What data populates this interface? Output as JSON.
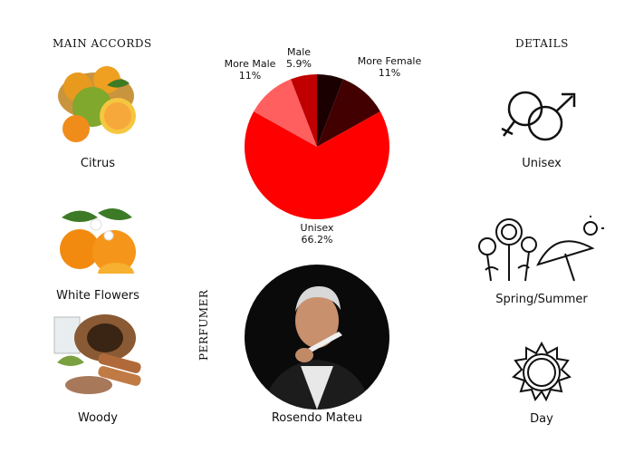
{
  "main_accords": {
    "heading": "MAIN ACCORDS",
    "items": [
      {
        "label": "Citrus",
        "icon": "citrus-fruit-image"
      },
      {
        "label": "White Flowers",
        "icon": "white-flowers-image"
      },
      {
        "label": "Woody",
        "icon": "woody-image"
      }
    ]
  },
  "details": {
    "heading": "DETAILS",
    "items": [
      {
        "label": "Unisex",
        "icon": "gender-symbols-icon"
      },
      {
        "label": "Spring/Summer",
        "icon": "flowers-umbrella-sun-icon"
      },
      {
        "label": "Day",
        "icon": "sun-icon"
      }
    ]
  },
  "perfumer": {
    "heading": "PERFUMER",
    "name": "Rosendo Mateu"
  },
  "chart_data": {
    "type": "pie",
    "start": "top, clockwise",
    "slices": [
      {
        "name": "",
        "value": 5.9,
        "color": "#1a0000"
      },
      {
        "name": "More Female",
        "value": 11,
        "label": "11%",
        "color": "#420000"
      },
      {
        "name": "Unisex",
        "value": 66.2,
        "label": "66.2%",
        "color": "#ff0000"
      },
      {
        "name": "More Male",
        "value": 11,
        "label": "11%",
        "color": "#ff5f5f"
      },
      {
        "name": "Male",
        "value": 5.9,
        "label": "5.9%",
        "color": "#c00000"
      }
    ]
  }
}
